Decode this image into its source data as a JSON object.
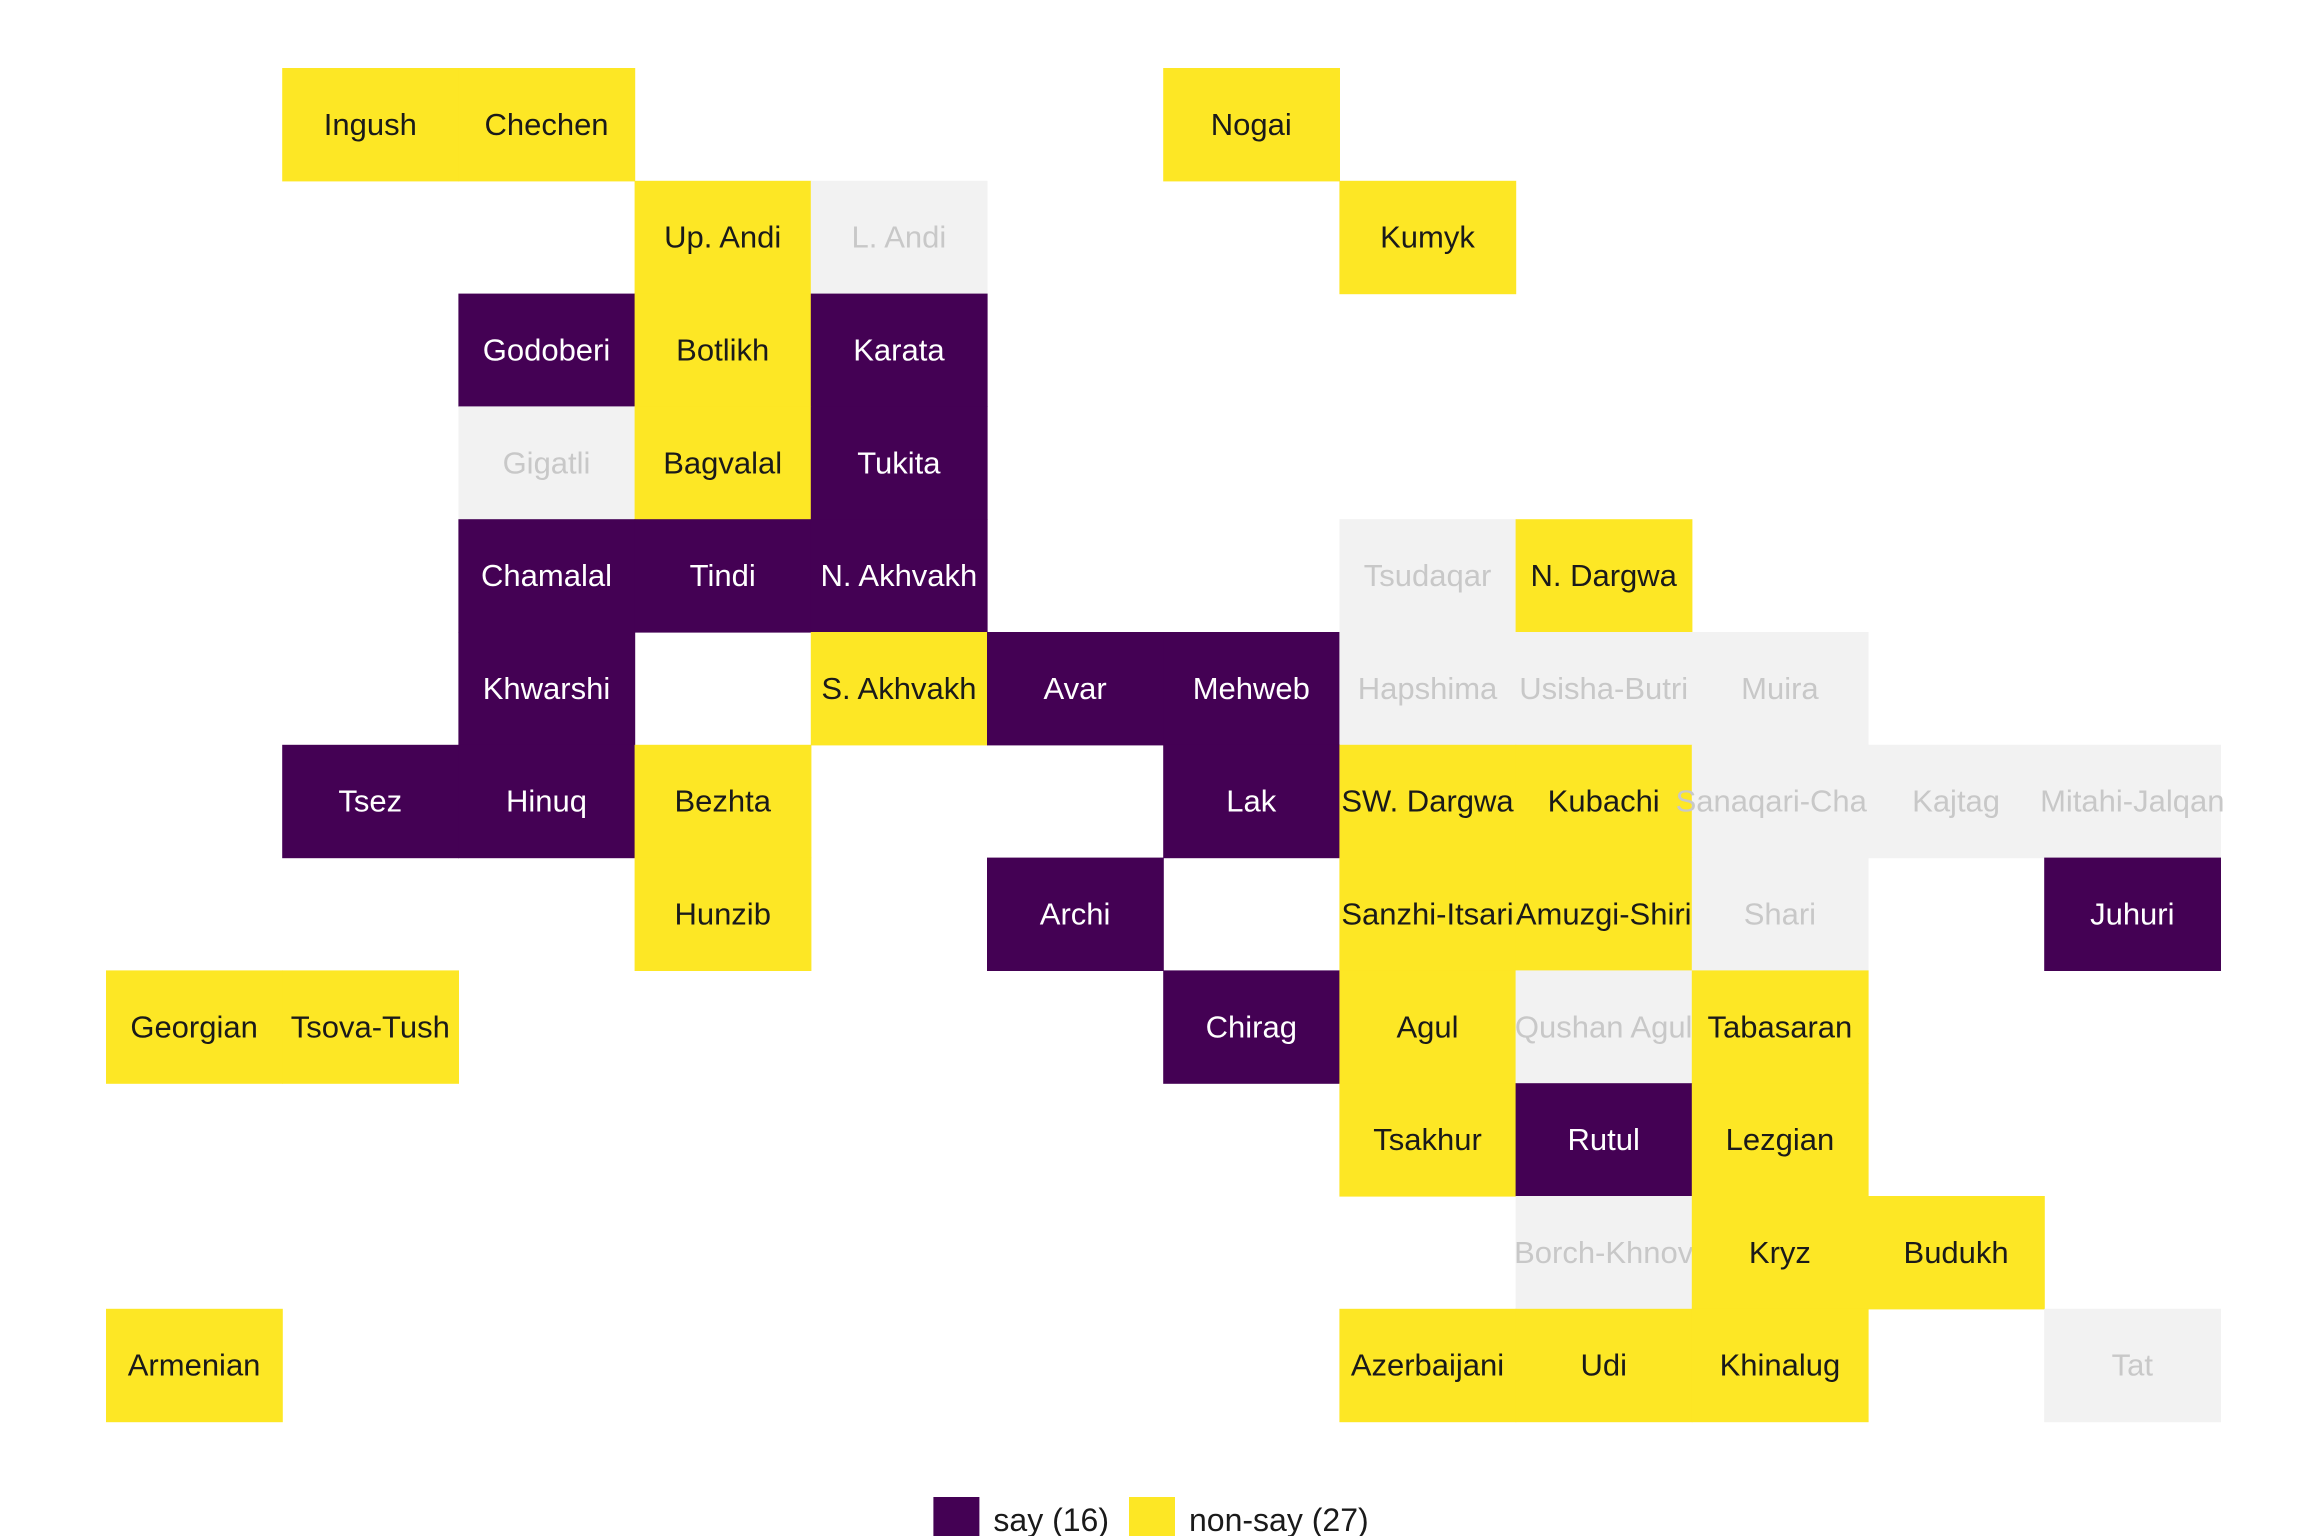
{
  "chart_data": {
    "type": "heatmap",
    "title": "",
    "xlabel": "",
    "ylabel": "",
    "grid": false,
    "legend_position": "bottom",
    "colors": {
      "say": "#440154",
      "non-say": "#FDE725",
      "no-data": "#F2F2F2",
      "text_on_say": "#FFFFFF",
      "text_on_non_say": "#1A1A1A",
      "text_on_no_data": "#C8C8C8"
    },
    "legend": [
      {
        "category": "say",
        "label": "say (16)"
      },
      {
        "category": "non-say",
        "label": "non-say (27)"
      }
    ],
    "tiles": [
      {
        "name": "Ingush",
        "col": 2,
        "row": 1,
        "category": "non-say"
      },
      {
        "name": "Chechen",
        "col": 3,
        "row": 1,
        "category": "non-say"
      },
      {
        "name": "Nogai",
        "col": 7,
        "row": 1,
        "category": "non-say"
      },
      {
        "name": "Up. Andi",
        "col": 4,
        "row": 2,
        "category": "non-say"
      },
      {
        "name": "L. Andi",
        "col": 5,
        "row": 2,
        "category": "no-data"
      },
      {
        "name": "Kumyk",
        "col": 8,
        "row": 2,
        "category": "non-say"
      },
      {
        "name": "Godoberi",
        "col": 3,
        "row": 3,
        "category": "say"
      },
      {
        "name": "Botlikh",
        "col": 4,
        "row": 3,
        "category": "non-say"
      },
      {
        "name": "Karata",
        "col": 5,
        "row": 3,
        "category": "say"
      },
      {
        "name": "Gigatli",
        "col": 3,
        "row": 4,
        "category": "no-data"
      },
      {
        "name": "Bagvalal",
        "col": 4,
        "row": 4,
        "category": "non-say"
      },
      {
        "name": "Tukita",
        "col": 5,
        "row": 4,
        "category": "say"
      },
      {
        "name": "Chamalal",
        "col": 3,
        "row": 5,
        "category": "say"
      },
      {
        "name": "Tindi",
        "col": 4,
        "row": 5,
        "category": "say"
      },
      {
        "name": "N. Akhvakh",
        "col": 5,
        "row": 5,
        "category": "say"
      },
      {
        "name": "Tsudaqar",
        "col": 8,
        "row": 5,
        "category": "no-data"
      },
      {
        "name": "N. Dargwa",
        "col": 9,
        "row": 5,
        "category": "non-say"
      },
      {
        "name": "Khwarshi",
        "col": 3,
        "row": 6,
        "category": "say"
      },
      {
        "name": "S. Akhvakh",
        "col": 5,
        "row": 6,
        "category": "non-say"
      },
      {
        "name": "Avar",
        "col": 6,
        "row": 6,
        "category": "say"
      },
      {
        "name": "Mehweb",
        "col": 7,
        "row": 6,
        "category": "say"
      },
      {
        "name": "Hapshima",
        "col": 8,
        "row": 6,
        "category": "no-data"
      },
      {
        "name": "Usisha-Butri",
        "col": 9,
        "row": 6,
        "category": "no-data"
      },
      {
        "name": "Muira",
        "col": 10,
        "row": 6,
        "category": "no-data"
      },
      {
        "name": "Tsez",
        "col": 2,
        "row": 7,
        "category": "say"
      },
      {
        "name": "Hinuq",
        "col": 3,
        "row": 7,
        "category": "say"
      },
      {
        "name": "Bezhta",
        "col": 4,
        "row": 7,
        "category": "non-say"
      },
      {
        "name": "Lak",
        "col": 7,
        "row": 7,
        "category": "say"
      },
      {
        "name": "SW. Dargwa",
        "col": 8,
        "row": 7,
        "category": "non-say"
      },
      {
        "name": "Kubachi",
        "col": 9,
        "row": 7,
        "category": "non-say"
      },
      {
        "name": "Sanaqari-Chah",
        "col": 10,
        "row": 7,
        "category": "no-data"
      },
      {
        "name": "Kajtag",
        "col": 11,
        "row": 7,
        "category": "no-data"
      },
      {
        "name": "Mitahi-Jalqan",
        "col": 12,
        "row": 7,
        "category": "no-data"
      },
      {
        "name": "Hunzib",
        "col": 4,
        "row": 8,
        "category": "non-say"
      },
      {
        "name": "Archi",
        "col": 6,
        "row": 8,
        "category": "say"
      },
      {
        "name": "Sanzhi-Itsari",
        "col": 8,
        "row": 8,
        "category": "non-say"
      },
      {
        "name": "Amuzgi-Shiri",
        "col": 9,
        "row": 8,
        "category": "non-say"
      },
      {
        "name": "Shari",
        "col": 10,
        "row": 8,
        "category": "no-data"
      },
      {
        "name": "Juhuri",
        "col": 12,
        "row": 8,
        "category": "say"
      },
      {
        "name": "Georgian",
        "col": 1,
        "row": 9,
        "category": "non-say"
      },
      {
        "name": "Tsova-Tush",
        "col": 2,
        "row": 9,
        "category": "non-say"
      },
      {
        "name": "Chirag",
        "col": 7,
        "row": 9,
        "category": "say"
      },
      {
        "name": "Agul",
        "col": 8,
        "row": 9,
        "category": "non-say"
      },
      {
        "name": "Qushan Agul",
        "col": 9,
        "row": 9,
        "category": "no-data"
      },
      {
        "name": "Tabasaran",
        "col": 10,
        "row": 9,
        "category": "non-say"
      },
      {
        "name": "Tsakhur",
        "col": 8,
        "row": 10,
        "category": "non-say"
      },
      {
        "name": "Rutul",
        "col": 9,
        "row": 10,
        "category": "say"
      },
      {
        "name": "Lezgian",
        "col": 10,
        "row": 10,
        "category": "non-say"
      },
      {
        "name": "Borch-Khnov",
        "col": 9,
        "row": 11,
        "category": "no-data"
      },
      {
        "name": "Kryz",
        "col": 10,
        "row": 11,
        "category": "non-say"
      },
      {
        "name": "Budukh",
        "col": 11,
        "row": 11,
        "category": "non-say"
      },
      {
        "name": "Armenian",
        "col": 1,
        "row": 12,
        "category": "non-say"
      },
      {
        "name": "Azerbaijani",
        "col": 8,
        "row": 12,
        "category": "non-say"
      },
      {
        "name": "Udi",
        "col": 9,
        "row": 12,
        "category": "non-say"
      },
      {
        "name": "Khinalug",
        "col": 10,
        "row": 12,
        "category": "non-say"
      },
      {
        "name": "Tat",
        "col": 12,
        "row": 12,
        "category": "no-data"
      }
    ]
  }
}
